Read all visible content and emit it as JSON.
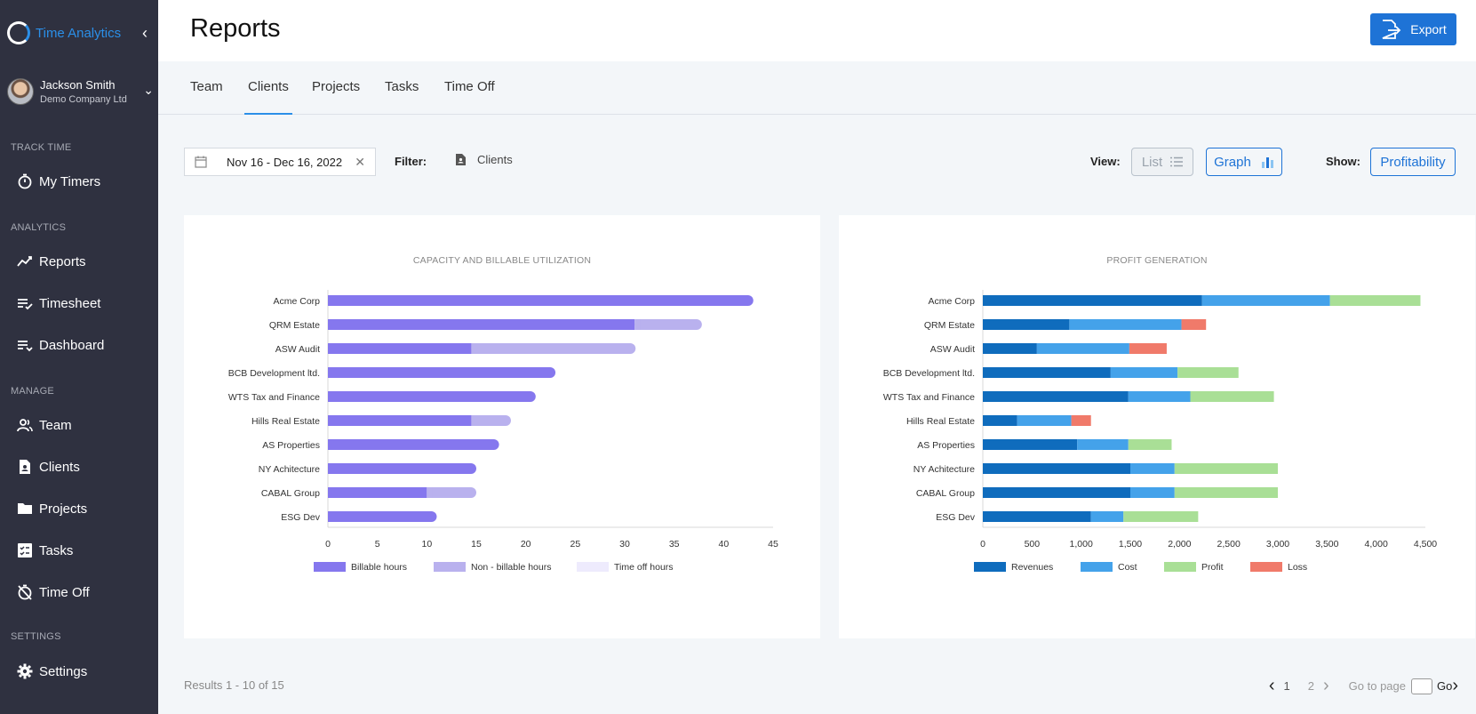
{
  "app": {
    "name": "Time Analytics"
  },
  "user": {
    "name": "Jackson Smith",
    "company": "Demo Company Ltd"
  },
  "sidebar": {
    "sections": [
      {
        "label": "TRACK TIME",
        "items": [
          {
            "label": "My Timers",
            "icon": "stopwatch-icon"
          }
        ]
      },
      {
        "label": "ANALYTICS",
        "items": [
          {
            "label": "Reports",
            "icon": "trend-icon"
          },
          {
            "label": "Timesheet",
            "icon": "timesheet-icon"
          },
          {
            "label": "Dashboard",
            "icon": "dashboard-icon"
          }
        ]
      },
      {
        "label": "MANAGE",
        "items": [
          {
            "label": "Team",
            "icon": "team-icon"
          },
          {
            "label": "Clients",
            "icon": "clients-icon"
          },
          {
            "label": "Projects",
            "icon": "folder-icon"
          },
          {
            "label": "Tasks",
            "icon": "tasks-icon"
          },
          {
            "label": "Time Off",
            "icon": "time-off-icon"
          }
        ]
      },
      {
        "label": "SETTINGS",
        "items": [
          {
            "label": "Settings",
            "icon": "gear-icon"
          }
        ]
      }
    ]
  },
  "header": {
    "title": "Reports",
    "export_label": "Export"
  },
  "tabs": [
    {
      "label": "Team",
      "active": false
    },
    {
      "label": "Clients",
      "active": true
    },
    {
      "label": "Projects",
      "active": false
    },
    {
      "label": "Tasks",
      "active": false
    },
    {
      "label": "Time Off",
      "active": false
    }
  ],
  "controls": {
    "date_range": "Nov 16 - Dec 16, 2022",
    "filter_label": "Filter:",
    "filter_value": "Clients",
    "view_label": "View:",
    "view_list": "List",
    "view_graph": "Graph",
    "show_label": "Show:",
    "show_value": "Profitability"
  },
  "colors": {
    "accent": "#1e73d6",
    "billable": "#8577ee",
    "non_billable": "#b9b1ee",
    "time_off": "#eeebfd",
    "revenues": "#0f6cbd",
    "cost": "#44a2ea",
    "profit": "#a9df96",
    "loss": "#f07a6a"
  },
  "chart_data": [
    {
      "type": "bar",
      "orientation": "horizontal",
      "stacked": true,
      "title": "CAPACITY AND BILLABLE UTILIZATION",
      "categories": [
        "Acme Corp",
        "QRM Estate",
        "ASW Audit",
        "BCB Development ltd.",
        "WTS Tax and Finance",
        "Hills Real Estate",
        "AS Properties",
        "NY Achitecture",
        "CABAL Group",
        "ESG Dev"
      ],
      "series": [
        {
          "name": "Billable hours",
          "values": [
            43,
            31,
            14.5,
            23,
            21,
            14.5,
            17.3,
            15,
            10,
            11
          ]
        },
        {
          "name": "Non - billable hours",
          "values": [
            0,
            6.8,
            16.6,
            0,
            0,
            4,
            0,
            0,
            5,
            0
          ]
        },
        {
          "name": "Time off hours",
          "values": [
            0,
            0,
            0,
            0,
            0,
            0,
            0,
            0,
            0,
            0
          ]
        }
      ],
      "xlim": [
        0,
        45
      ],
      "xticks": [
        0,
        5,
        10,
        15,
        20,
        25,
        30,
        35,
        40,
        45
      ],
      "legend": "bottom"
    },
    {
      "type": "bar",
      "orientation": "horizontal",
      "stacked": true,
      "title": "PROFIT GENERATION",
      "categories": [
        "Acme Corp",
        "QRM Estate",
        "ASW Audit",
        "BCB Development ltd.",
        "WTS Tax and Finance",
        "Hills Real Estate",
        "AS Properties",
        "NY Achitecture",
        "CABAL Group",
        "ESG Dev"
      ],
      "series": [
        {
          "name": "Revenues",
          "values": [
            2230,
            880,
            550,
            1300,
            1480,
            350,
            960,
            1500,
            1500,
            1100
          ]
        },
        {
          "name": "Cost",
          "values": [
            1300,
            1140,
            940,
            680,
            630,
            550,
            520,
            450,
            450,
            330
          ]
        },
        {
          "name": "Profit",
          "values": [
            920,
            0,
            0,
            620,
            850,
            0,
            440,
            1050,
            1050,
            760
          ]
        },
        {
          "name": "Loss",
          "values": [
            0,
            250,
            380,
            0,
            0,
            200,
            0,
            0,
            0,
            0
          ]
        }
      ],
      "xlim": [
        0,
        4500
      ],
      "xticks": [
        "0",
        "500",
        "1,000",
        "1,500",
        "2,000",
        "2,500",
        "3,000",
        "3,500",
        "4,000",
        "4,500"
      ],
      "legend": "bottom"
    }
  ],
  "footer": {
    "results": "Results 1 - 10 of 15",
    "pages": [
      "1",
      "2"
    ],
    "goto_label": "Go to page",
    "go_label": "Go"
  }
}
